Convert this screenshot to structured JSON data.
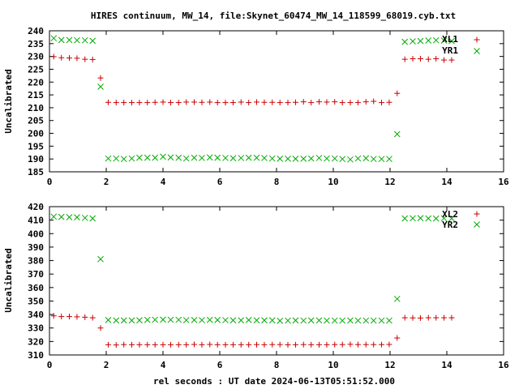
{
  "figure": {
    "title": "HIRES continuum, MW_14, file:Skynet_60474_MW_14_118599_68019.cyb.txt",
    "xlabel": "rel seconds : UT date 2024-06-13T05:51:52.000"
  },
  "chart_data": [
    {
      "type": "scatter",
      "ylabel": "Uncalibrated",
      "xlim": [
        0,
        16
      ],
      "ylim": [
        185,
        240
      ],
      "xticks": [
        0,
        2,
        4,
        6,
        8,
        10,
        12,
        14,
        16
      ],
      "yticks": [
        185,
        190,
        195,
        200,
        205,
        210,
        215,
        220,
        225,
        230,
        235,
        240
      ],
      "grid": false,
      "legend_position": "top-right",
      "series": [
        {
          "name": "XL1",
          "marker": "plus",
          "color": "#cc0000",
          "x": [
            0.15,
            0.42,
            0.7,
            0.97,
            1.25,
            1.52,
            1.8,
            2.07,
            2.35,
            2.62,
            2.9,
            3.17,
            3.45,
            3.72,
            4.0,
            4.27,
            4.55,
            4.82,
            5.1,
            5.37,
            5.65,
            5.92,
            6.2,
            6.47,
            6.75,
            7.02,
            7.3,
            7.57,
            7.85,
            8.12,
            8.4,
            8.67,
            8.95,
            9.22,
            9.5,
            9.77,
            10.05,
            10.32,
            10.6,
            10.87,
            11.15,
            11.42,
            11.7,
            11.97,
            12.25,
            12.52,
            12.8,
            13.07,
            13.35,
            13.62,
            13.9,
            14.17
          ],
          "y": [
            229.9,
            229.5,
            229.4,
            229.3,
            228.9,
            228.8,
            221.6,
            212.1,
            212.0,
            212.0,
            212.0,
            212.0,
            212.0,
            212.1,
            212.2,
            212.0,
            212.0,
            212.2,
            212.2,
            212.1,
            212.2,
            212.0,
            212.0,
            212.0,
            212.2,
            212.0,
            212.2,
            212.1,
            212.1,
            212.0,
            212.0,
            212.1,
            212.3,
            212.0,
            212.3,
            212.2,
            212.3,
            212.0,
            212.0,
            212.0,
            212.3,
            212.5,
            212.0,
            212.1,
            215.6,
            228.9,
            229.1,
            229.1,
            228.9,
            229.1,
            228.6,
            228.6
          ]
        },
        {
          "name": "YR1",
          "marker": "cross",
          "color": "#00aa00",
          "x": [
            0.15,
            0.42,
            0.7,
            0.97,
            1.25,
            1.52,
            1.8,
            2.07,
            2.35,
            2.62,
            2.9,
            3.17,
            3.45,
            3.72,
            4.0,
            4.27,
            4.55,
            4.82,
            5.1,
            5.37,
            5.65,
            5.92,
            6.2,
            6.47,
            6.75,
            7.02,
            7.3,
            7.57,
            7.85,
            8.12,
            8.4,
            8.67,
            8.95,
            9.22,
            9.5,
            9.77,
            10.05,
            10.32,
            10.6,
            10.87,
            11.15,
            11.42,
            11.7,
            11.97,
            12.25,
            12.52,
            12.8,
            13.07,
            13.35,
            13.62,
            13.9,
            14.17
          ],
          "y": [
            237.1,
            236.4,
            236.4,
            236.3,
            236.3,
            236.1,
            218.2,
            190.2,
            190.2,
            190.0,
            190.2,
            190.5,
            190.5,
            190.5,
            190.9,
            190.6,
            190.5,
            190.2,
            190.5,
            190.4,
            190.6,
            190.5,
            190.4,
            190.3,
            190.4,
            190.5,
            190.5,
            190.4,
            190.2,
            190.1,
            190.1,
            190.1,
            190.1,
            190.2,
            190.4,
            190.2,
            190.2,
            190.0,
            189.8,
            190.2,
            190.3,
            190.0,
            190.0,
            190.0,
            199.7,
            235.7,
            235.9,
            236.0,
            236.2,
            236.3,
            236.2,
            236.0
          ]
        }
      ]
    },
    {
      "type": "scatter",
      "ylabel": "Uncalibrated",
      "xlim": [
        0,
        16
      ],
      "ylim": [
        310,
        420
      ],
      "xticks": [
        0,
        2,
        4,
        6,
        8,
        10,
        12,
        14,
        16
      ],
      "yticks": [
        310,
        320,
        330,
        340,
        350,
        360,
        370,
        380,
        390,
        400,
        410,
        420
      ],
      "grid": false,
      "legend_position": "top-right",
      "series": [
        {
          "name": "XL2",
          "marker": "plus",
          "color": "#cc0000",
          "x": [
            0.15,
            0.42,
            0.7,
            0.97,
            1.25,
            1.52,
            1.8,
            2.07,
            2.35,
            2.62,
            2.9,
            3.17,
            3.45,
            3.72,
            4.0,
            4.27,
            4.55,
            4.82,
            5.1,
            5.37,
            5.65,
            5.92,
            6.2,
            6.47,
            6.75,
            7.02,
            7.3,
            7.57,
            7.85,
            8.12,
            8.4,
            8.67,
            8.95,
            9.22,
            9.5,
            9.77,
            10.05,
            10.32,
            10.6,
            10.87,
            11.15,
            11.42,
            11.7,
            11.97,
            12.25,
            12.52,
            12.8,
            13.07,
            13.35,
            13.62,
            13.9,
            14.17
          ],
          "y": [
            339.0,
            338.5,
            338.5,
            338.3,
            338.0,
            337.6,
            330.0,
            317.6,
            317.4,
            317.7,
            317.6,
            317.6,
            317.6,
            317.6,
            317.6,
            317.6,
            317.6,
            317.6,
            317.8,
            317.6,
            317.8,
            317.6,
            317.6,
            317.6,
            317.6,
            317.6,
            317.7,
            317.6,
            317.7,
            317.7,
            317.5,
            317.6,
            317.7,
            317.6,
            317.6,
            317.6,
            317.7,
            317.7,
            317.9,
            317.7,
            317.7,
            317.7,
            317.7,
            317.8,
            322.6,
            337.6,
            337.5,
            337.4,
            337.6,
            337.6,
            337.6,
            337.6
          ]
        },
        {
          "name": "YR2",
          "marker": "cross",
          "color": "#00aa00",
          "x": [
            0.15,
            0.42,
            0.7,
            0.97,
            1.25,
            1.52,
            1.8,
            2.07,
            2.35,
            2.62,
            2.9,
            3.17,
            3.45,
            3.72,
            4.0,
            4.27,
            4.55,
            4.82,
            5.1,
            5.37,
            5.65,
            5.92,
            6.2,
            6.47,
            6.75,
            7.02,
            7.3,
            7.57,
            7.85,
            8.12,
            8.4,
            8.67,
            8.95,
            9.22,
            9.5,
            9.77,
            10.05,
            10.32,
            10.6,
            10.87,
            11.15,
            11.42,
            11.7,
            11.97,
            12.25,
            12.52,
            12.8,
            13.07,
            13.35,
            13.62,
            13.9,
            14.17
          ],
          "y": [
            412.6,
            412.4,
            412.2,
            412.1,
            411.7,
            411.3,
            381.1,
            335.9,
            335.6,
            335.6,
            335.6,
            335.7,
            336.0,
            336.1,
            336.2,
            336.1,
            336.1,
            335.8,
            335.9,
            335.8,
            336.0,
            335.9,
            335.8,
            335.7,
            335.7,
            335.9,
            335.7,
            335.7,
            335.7,
            335.3,
            335.5,
            335.6,
            335.5,
            335.6,
            335.6,
            335.5,
            335.5,
            335.5,
            335.6,
            335.5,
            335.5,
            335.5,
            335.5,
            335.5,
            351.6,
            411.3,
            411.4,
            411.5,
            411.3,
            411.2,
            411.4,
            411.3
          ]
        }
      ]
    }
  ]
}
